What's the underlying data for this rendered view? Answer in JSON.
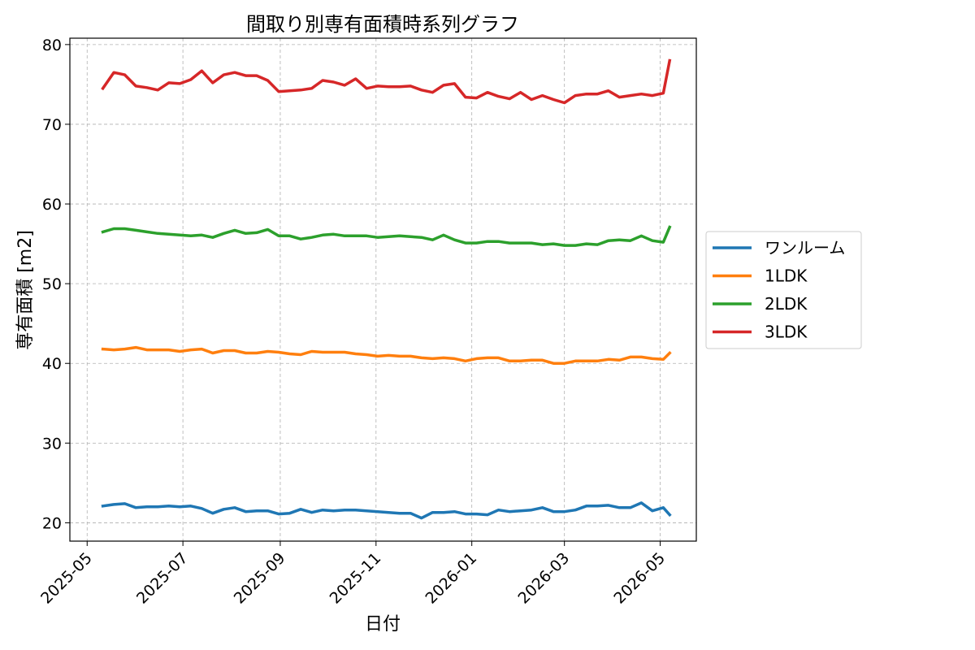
{
  "chart_data": {
    "type": "line",
    "title": "間取り別専有面積時系列グラフ",
    "xlabel": "日付",
    "ylabel": "専有面積 [m2]",
    "ylim": [
      17.7,
      80.8
    ],
    "yticks": [
      20,
      30,
      40,
      50,
      60,
      70,
      80
    ],
    "xlim": [
      "2025-04-20",
      "2026-05-24"
    ],
    "xticks": [
      "2025-05-01",
      "2025-07-01",
      "2025-09-01",
      "2025-11-01",
      "2026-01-01",
      "2026-03-01",
      "2026-05-01"
    ],
    "xtick_labels": [
      "2025-05",
      "2025-07",
      "2025-09",
      "2025-11",
      "2026-01",
      "2026-03",
      "2026-05"
    ],
    "grid": true,
    "legend_position": "outside-right",
    "x": [
      "2025-05-11",
      "2025-05-18",
      "2025-05-25",
      "2025-06-01",
      "2025-06-08",
      "2025-06-15",
      "2025-06-22",
      "2025-06-29",
      "2025-07-06",
      "2025-07-13",
      "2025-07-20",
      "2025-07-27",
      "2025-08-03",
      "2025-08-10",
      "2025-08-17",
      "2025-08-24",
      "2025-08-31",
      "2025-09-07",
      "2025-09-14",
      "2025-09-21",
      "2025-09-28",
      "2025-10-05",
      "2025-10-12",
      "2025-10-19",
      "2025-10-26",
      "2025-11-02",
      "2025-11-09",
      "2025-11-16",
      "2025-11-23",
      "2025-11-30",
      "2025-12-07",
      "2025-12-14",
      "2025-12-21",
      "2025-12-28",
      "2026-01-04",
      "2026-01-11",
      "2026-01-18",
      "2026-01-25",
      "2026-02-01",
      "2026-02-08",
      "2026-02-15",
      "2026-02-22",
      "2026-03-01",
      "2026-03-08",
      "2026-03-15",
      "2026-03-22",
      "2026-03-29",
      "2026-04-05",
      "2026-04-12",
      "2026-04-19",
      "2026-04-26",
      "2026-05-03",
      "2026-05-07"
    ],
    "series": [
      {
        "name": "ワンルーム",
        "color": "#1f77b4",
        "values": [
          22.1,
          22.3,
          22.4,
          21.9,
          22.0,
          22.0,
          22.1,
          22.0,
          22.1,
          21.8,
          21.2,
          21.7,
          21.9,
          21.4,
          21.5,
          21.5,
          21.1,
          21.2,
          21.7,
          21.3,
          21.6,
          21.5,
          21.6,
          21.6,
          21.5,
          21.4,
          21.3,
          21.2,
          21.2,
          20.6,
          21.3,
          21.3,
          21.4,
          21.1,
          21.1,
          21.0,
          21.6,
          21.4,
          21.5,
          21.6,
          21.9,
          21.4,
          21.4,
          21.6,
          22.1,
          22.1,
          22.2,
          21.9,
          21.9,
          22.5,
          21.5,
          21.9,
          21.0
        ]
      },
      {
        "name": "1LDK",
        "color": "#ff7f0e",
        "values": [
          41.8,
          41.7,
          41.8,
          42.0,
          41.7,
          41.7,
          41.7,
          41.5,
          41.7,
          41.8,
          41.3,
          41.6,
          41.6,
          41.3,
          41.3,
          41.5,
          41.4,
          41.2,
          41.1,
          41.5,
          41.4,
          41.4,
          41.4,
          41.2,
          41.1,
          40.9,
          41.0,
          40.9,
          40.9,
          40.7,
          40.6,
          40.7,
          40.6,
          40.3,
          40.6,
          40.7,
          40.7,
          40.3,
          40.3,
          40.4,
          40.4,
          40.0,
          40.0,
          40.3,
          40.3,
          40.3,
          40.5,
          40.4,
          40.8,
          40.8,
          40.6,
          40.5,
          41.3
        ]
      },
      {
        "name": "2LDK",
        "color": "#2ca02c",
        "values": [
          56.5,
          56.9,
          56.9,
          56.7,
          56.5,
          56.3,
          56.2,
          56.1,
          56.0,
          56.1,
          55.8,
          56.3,
          56.7,
          56.3,
          56.4,
          56.8,
          56.0,
          56.0,
          55.6,
          55.8,
          56.1,
          56.2,
          56.0,
          56.0,
          56.0,
          55.8,
          55.9,
          56.0,
          55.9,
          55.8,
          55.5,
          56.1,
          55.5,
          55.1,
          55.1,
          55.3,
          55.3,
          55.1,
          55.1,
          55.1,
          54.9,
          55.0,
          54.8,
          54.8,
          55.0,
          54.9,
          55.4,
          55.5,
          55.4,
          56.0,
          55.4,
          55.2,
          57.1
        ]
      },
      {
        "name": "3LDK",
        "color": "#d62728",
        "values": [
          74.5,
          76.5,
          76.2,
          74.8,
          74.6,
          74.3,
          75.2,
          75.1,
          75.6,
          76.7,
          75.2,
          76.2,
          76.5,
          76.1,
          76.1,
          75.5,
          74.1,
          74.2,
          74.3,
          74.5,
          75.5,
          75.3,
          74.9,
          75.7,
          74.5,
          74.8,
          74.7,
          74.7,
          74.8,
          74.3,
          74.0,
          74.9,
          75.1,
          73.4,
          73.3,
          74.0,
          73.5,
          73.2,
          74.0,
          73.1,
          73.6,
          73.1,
          72.7,
          73.6,
          73.8,
          73.8,
          74.2,
          73.4,
          73.6,
          73.8,
          73.6,
          73.9,
          78.0
        ]
      }
    ]
  }
}
